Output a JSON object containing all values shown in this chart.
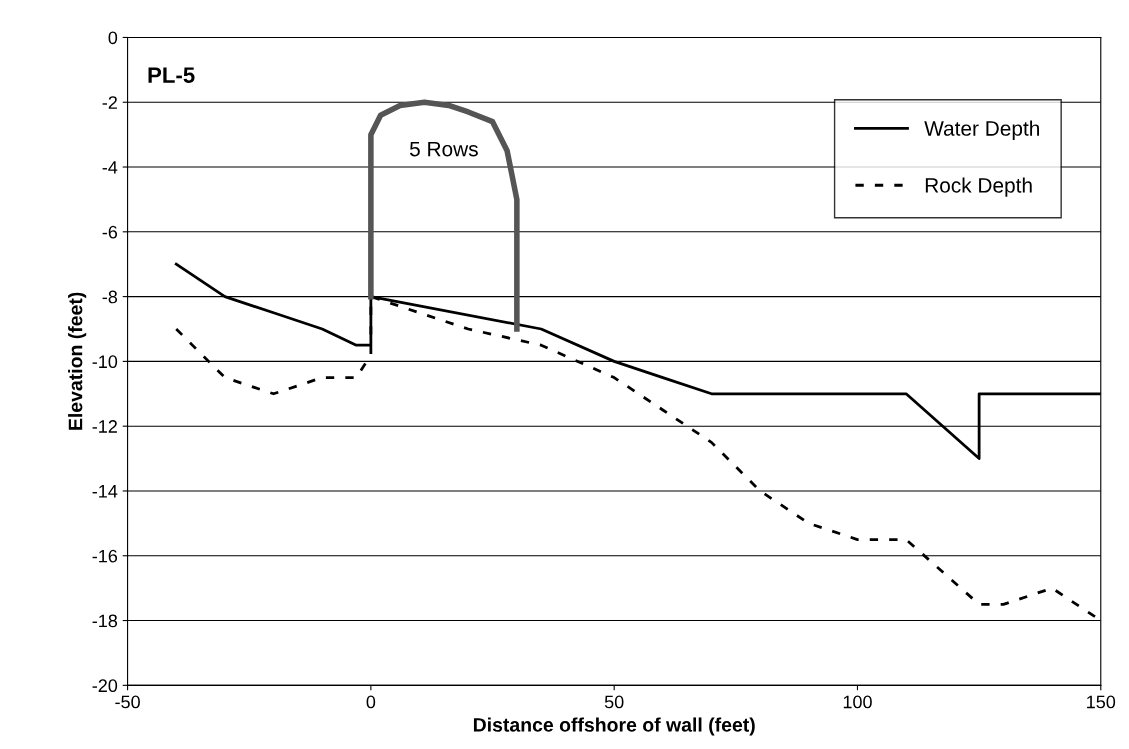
{
  "chart_data": {
    "type": "line",
    "title": "PL-5",
    "xlabel": "Distance offshore of wall (feet)",
    "ylabel": "Elevation (feet)",
    "xlim": [
      -50,
      150
    ],
    "xticks": [
      -50,
      0,
      50,
      100,
      150
    ],
    "ylim": [
      -20,
      0
    ],
    "yticks": [
      -20,
      -18,
      -16,
      -14,
      -12,
      -10,
      -8,
      -6,
      -4,
      -2,
      0
    ],
    "grid": "y",
    "legend": "top right",
    "series": [
      {
        "name": "Water Depth",
        "color": "#000000",
        "line_style": "solid",
        "x": [
          -40,
          -30,
          -20,
          -10,
          -3,
          0,
          0,
          35,
          50,
          60,
          70,
          110,
          125,
          125,
          150
        ],
        "values": [
          -7,
          -8,
          -8.5,
          -9,
          -9.5,
          -9.5,
          -8,
          -9,
          -10,
          -10.5,
          -11,
          -11,
          -13,
          -11,
          -11
        ]
      },
      {
        "name": "Rock Depth",
        "color": "#000000",
        "line_style": "dashed",
        "x": [
          -40,
          -30,
          -20,
          -10,
          -3,
          0,
          0,
          10,
          20,
          35,
          50,
          60,
          70,
          80,
          90,
          100,
          110,
          125,
          130,
          140,
          150
        ],
        "values": [
          -9,
          -10.5,
          -11,
          -10.5,
          -10.5,
          -9.8,
          -8,
          -8.5,
          -9,
          -9.5,
          -10.5,
          -11.5,
          -12.5,
          -14,
          -15,
          -15.5,
          -15.5,
          -17.5,
          -17.5,
          -17,
          -18
        ]
      },
      {
        "color": "#555555",
        "line_style": "solid",
        "x": [
          0,
          0,
          2,
          6,
          11,
          16,
          20,
          25,
          28,
          30,
          30
        ],
        "values": [
          -8,
          -3,
          -2.4,
          -2.1,
          -2,
          -2.1,
          -2.3,
          -2.6,
          -3.5,
          -5,
          -9
        ]
      }
    ],
    "annotations": [
      "5 Rows"
    ]
  }
}
